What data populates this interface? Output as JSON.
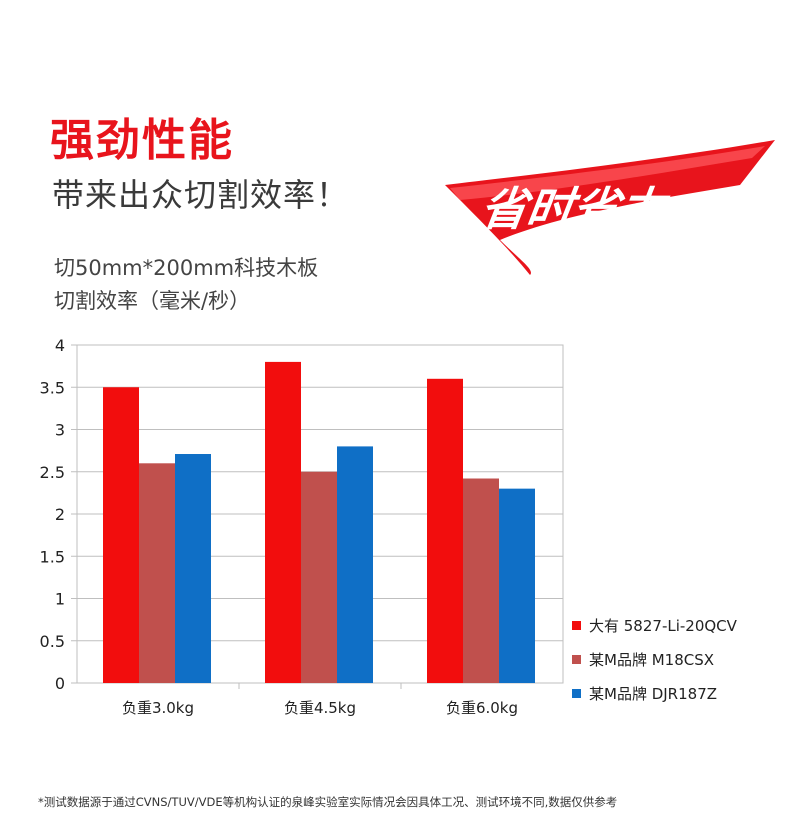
{
  "header": {
    "title": "强劲性能",
    "subtitle": "带来出众切割效率！",
    "badge_text": "省时省力"
  },
  "spec": {
    "line1": "切50mm*200mm科技木板",
    "line2": "切割效率（毫米/秒）"
  },
  "chart_data": {
    "type": "bar",
    "title": "",
    "xlabel": "",
    "ylabel": "",
    "categories": [
      "负重3.0kg",
      "负重4.5kg",
      "负重6.0kg"
    ],
    "series": [
      {
        "name": "大有 5827-Li-20QCV",
        "color": "#f20d0d",
        "values": [
          3.5,
          3.8,
          3.6
        ]
      },
      {
        "name": "某M品牌 M18CSX",
        "color": "#c0504d",
        "values": [
          2.6,
          2.5,
          2.42
        ]
      },
      {
        "name": "某M品牌 DJR187Z",
        "color": "#0f6fc6",
        "values": [
          2.71,
          2.8,
          2.3
        ]
      }
    ],
    "ylim": [
      0,
      4
    ],
    "yticks": [
      "0",
      "0.5",
      "1",
      "1.5",
      "2",
      "2.5",
      "3",
      "3.5",
      "4"
    ],
    "grid": true,
    "legend_position": "right"
  },
  "footnote": "*测试数据源于通过CVNS/TUV/VDE等机构认证的泉峰实验室实际情况会因具体工况、测试环境不同,数据仅供参考"
}
